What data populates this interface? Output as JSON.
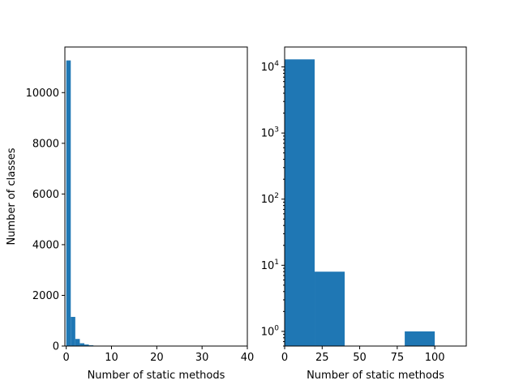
{
  "chart_data": [
    {
      "type": "bar",
      "subtype": "histogram",
      "title": "",
      "xlabel": "Number of static methods",
      "ylabel": "Number of classes",
      "yscale": "linear",
      "xlim": [
        -0.3,
        40
      ],
      "ylim": [
        0,
        11800
      ],
      "xticks": [
        0,
        10,
        20,
        30,
        40
      ],
      "yticks": [
        0,
        2000,
        4000,
        6000,
        8000,
        10000
      ],
      "bins": [
        {
          "x0": 0,
          "x1": 1,
          "value": 11270
        },
        {
          "x0": 1,
          "x1": 2,
          "value": 1150
        },
        {
          "x0": 2,
          "x1": 3,
          "value": 280
        },
        {
          "x0": 3,
          "x1": 4,
          "value": 110
        },
        {
          "x0": 4,
          "x1": 5,
          "value": 60
        },
        {
          "x0": 5,
          "x1": 6,
          "value": 30
        },
        {
          "x0": 6,
          "x1": 7,
          "value": 15
        },
        {
          "x0": 7,
          "x1": 8,
          "value": 8
        },
        {
          "x0": 8,
          "x1": 9,
          "value": 5
        }
      ],
      "grid": false,
      "color": "#1f77b4"
    },
    {
      "type": "bar",
      "subtype": "histogram",
      "title": "",
      "xlabel": "Number of static methods",
      "ylabel": "",
      "yscale": "log",
      "xlim": [
        0,
        121
      ],
      "ylim": [
        0.6,
        20000
      ],
      "xticks": [
        0,
        25,
        50,
        75,
        100
      ],
      "yticks": [
        1,
        10,
        100,
        1000,
        10000
      ],
      "ytick_labels": [
        {
          "base": "10",
          "exp": "0"
        },
        {
          "base": "10",
          "exp": "1"
        },
        {
          "base": "10",
          "exp": "2"
        },
        {
          "base": "10",
          "exp": "3"
        },
        {
          "base": "10",
          "exp": "4"
        }
      ],
      "bins": [
        {
          "x0": 0,
          "x1": 20,
          "value": 13000
        },
        {
          "x0": 20,
          "x1": 40,
          "value": 8
        },
        {
          "x0": 80,
          "x1": 100,
          "value": 1
        }
      ],
      "grid": false,
      "color": "#1f77b4"
    }
  ]
}
